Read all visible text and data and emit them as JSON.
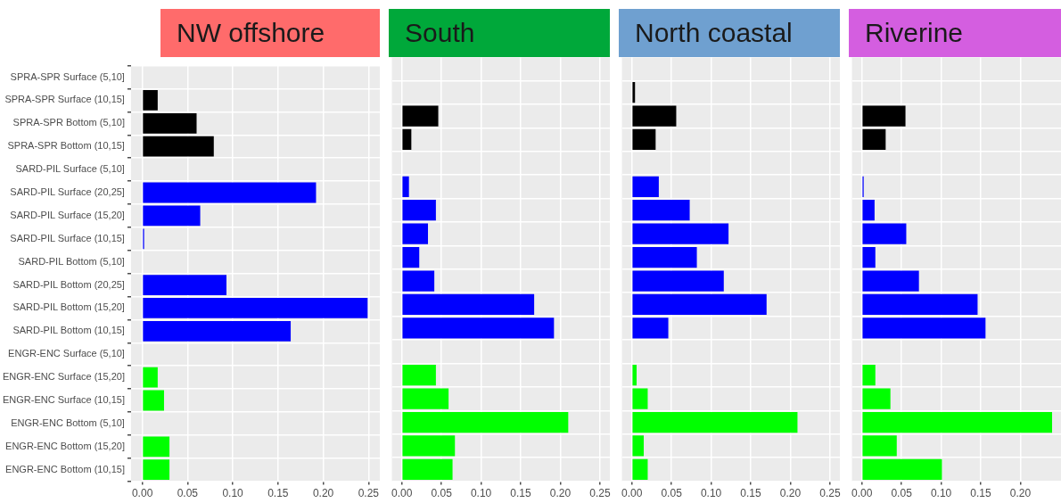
{
  "chart_data": [
    {
      "type": "bar",
      "orientation": "horizontal",
      "title": "NW offshore",
      "categories": [
        "SPRA-SPR Surface (5,10]",
        "SPRA-SPR Surface (10,15]",
        "SPRA-SPR Bottom (5,10]",
        "SPRA-SPR Bottom (10,15]",
        "SARD-PIL Surface (5,10]",
        "SARD-PIL Surface (20,25]",
        "SARD-PIL Surface (15,20]",
        "SARD-PIL Surface (10,15]",
        "SARD-PIL Bottom (5,10]",
        "SARD-PIL Bottom (20,25]",
        "SARD-PIL Bottom (15,20]",
        "SARD-PIL Bottom (10,15]",
        "ENGR-ENC Surface (5,10]",
        "ENGR-ENC Surface (15,20]",
        "ENGR-ENC Surface (10,15]",
        "ENGR-ENC Bottom (5,10]",
        "ENGR-ENC Bottom (15,20]",
        "ENGR-ENC Bottom (10,15]"
      ],
      "values": [
        null,
        0.017,
        0.06,
        0.079,
        null,
        0.192,
        0.064,
        0.001,
        null,
        0.093,
        0.249,
        0.164,
        null,
        0.017,
        0.024,
        null,
        0.03,
        0.03
      ],
      "colors": [
        "#000000",
        "#000000",
        "#000000",
        "#000000",
        "#0000ff",
        "#0000ff",
        "#0000ff",
        "#0000ff",
        "#0000ff",
        "#0000ff",
        "#0000ff",
        "#0000ff",
        "#00ff00",
        "#00ff00",
        "#00ff00",
        "#00ff00",
        "#00ff00",
        "#00ff00"
      ],
      "xlim": [
        -0.0125,
        0.2625
      ],
      "xticks": [
        {
          "value": 0,
          "label": "0.00"
        },
        0.05,
        {
          "value": 0.1,
          "label": "0.10"
        },
        0.15,
        {
          "value": 0.2,
          "label": "0.20"
        },
        0.25
      ],
      "grid": true
    },
    {
      "type": "bar",
      "orientation": "horizontal",
      "title": "South",
      "categories": [
        null,
        null,
        null,
        null,
        null,
        null,
        null,
        null,
        null,
        null,
        null,
        null,
        null,
        null,
        null,
        null,
        null,
        null
      ],
      "values": [
        null,
        null,
        0.046,
        0.012,
        null,
        0.009,
        0.043,
        0.033,
        0.022,
        0.041,
        0.167,
        0.192,
        null,
        0.043,
        0.059,
        0.21,
        0.067,
        0.064
      ],
      "colors": [
        "#000000",
        "#000000",
        "#000000",
        "#000000",
        "#0000ff",
        "#0000ff",
        "#0000ff",
        "#0000ff",
        "#0000ff",
        "#0000ff",
        "#0000ff",
        "#0000ff",
        "#00ff00",
        "#00ff00",
        "#00ff00",
        "#00ff00",
        "#00ff00",
        "#00ff00"
      ],
      "xlim": [
        -0.0125,
        0.2625
      ],
      "xticks": [
        {
          "value": 0,
          "label": "0.00"
        },
        0.05,
        {
          "value": 0.1,
          "label": "0.10"
        },
        0.15,
        {
          "value": 0.2,
          "label": "0.20"
        },
        0.25
      ],
      "grid": true,
      "tick_labels": "x"
    },
    {
      "type": "bar",
      "orientation": "horizontal",
      "title": "North coastal",
      "categories": [
        null,
        null,
        null,
        null,
        null,
        null,
        null,
        null,
        null,
        null,
        null,
        null,
        null,
        null,
        null,
        null,
        null,
        null
      ],
      "values": [
        null,
        0.004,
        0.056,
        0.03,
        null,
        0.034,
        0.073,
        0.122,
        0.082,
        0.116,
        0.17,
        0.046,
        null,
        0.006,
        0.02,
        0.209,
        0.015,
        0.02
      ],
      "colors": [
        "#000000",
        "#000000",
        "#000000",
        "#000000",
        "#0000ff",
        "#0000ff",
        "#0000ff",
        "#0000ff",
        "#0000ff",
        "#0000ff",
        "#0000ff",
        "#0000ff",
        "#00ff00",
        "#00ff00",
        "#00ff00",
        "#00ff00",
        "#00ff00",
        "#00ff00"
      ],
      "xlim": [
        -0.0125,
        0.2625
      ],
      "xticks": [
        {
          "value": 0,
          "label": "0.00"
        },
        0.05,
        {
          "value": 0.1,
          "label": "0.10"
        },
        0.15,
        {
          "value": 0.2,
          "label": "0.20"
        },
        0.25
      ],
      "grid": true,
      "tick_labels": "x"
    },
    {
      "type": "bar",
      "orientation": "horizontal",
      "title": "Riverine",
      "categories": [
        null,
        null,
        null,
        null,
        null,
        null,
        null,
        null,
        null,
        null,
        null,
        null,
        null,
        null,
        null,
        null,
        null,
        null
      ],
      "values": [
        null,
        null,
        0.055,
        0.03,
        null,
        0.001,
        0.016,
        0.056,
        0.017,
        0.072,
        0.146,
        0.156,
        null,
        0.017,
        0.036,
        0.24,
        0.044,
        0.101
      ],
      "colors": [
        "#000000",
        "#000000",
        "#000000",
        "#000000",
        "#0000ff",
        "#0000ff",
        "#0000ff",
        "#0000ff",
        "#0000ff",
        "#0000ff",
        "#0000ff",
        "#0000ff",
        "#00ff00",
        "#00ff00",
        "#00ff00",
        "#00ff00",
        "#00ff00",
        "#00ff00"
      ],
      "xlim": [
        -0.0125,
        0.2625
      ],
      "xticks": [
        {
          "value": 0,
          "label": "0.00"
        },
        0.05,
        {
          "value": 0.1,
          "label": "0.10"
        },
        0.15,
        {
          "value": 0.2,
          "label": "0.20"
        }
      ],
      "grid": true,
      "tick_labels": "x"
    }
  ]
}
